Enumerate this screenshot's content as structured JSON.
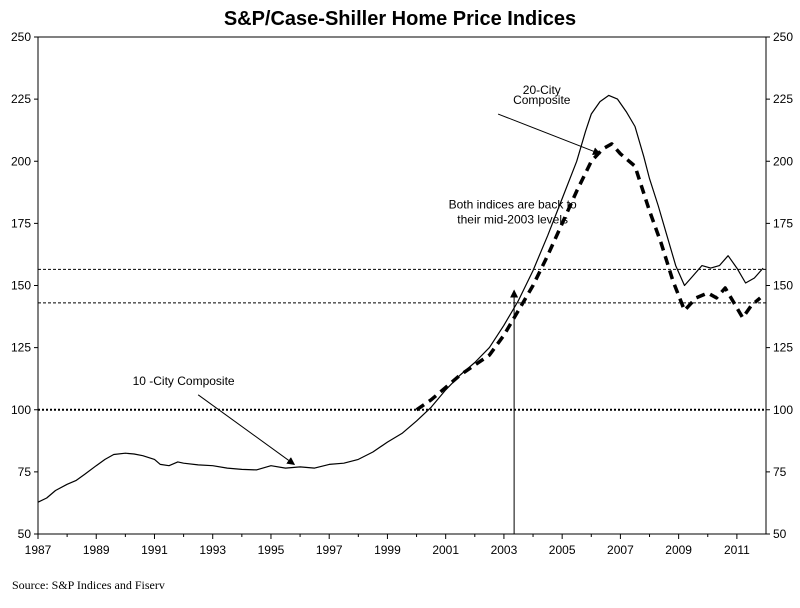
{
  "chart_data": {
    "type": "line",
    "title": "S&P/Case-Shiller Home Price Indices",
    "xlabel": "",
    "ylabel": "",
    "xlim": [
      1987,
      2012
    ],
    "ylim": [
      50,
      250
    ],
    "x_ticks": [
      "1987",
      "1989",
      "1991",
      "1993",
      "1995",
      "1997",
      "1999",
      "2001",
      "2003",
      "2005",
      "2007",
      "2009",
      "2011"
    ],
    "y_ticks": [
      "50",
      "75",
      "100",
      "125",
      "150",
      "175",
      "200",
      "225",
      "250"
    ],
    "grid": false,
    "series": [
      {
        "name": "10 -City Composite",
        "style": "solid",
        "points": [
          [
            1987.0,
            62.8
          ],
          [
            1987.3,
            64.5
          ],
          [
            1987.6,
            67.5
          ],
          [
            1988.0,
            70.0
          ],
          [
            1988.3,
            71.5
          ],
          [
            1988.6,
            74.0
          ],
          [
            1989.0,
            77.5
          ],
          [
            1989.3,
            80.0
          ],
          [
            1989.6,
            82.0
          ],
          [
            1990.0,
            82.5
          ],
          [
            1990.3,
            82.2
          ],
          [
            1990.6,
            81.5
          ],
          [
            1991.0,
            80.0
          ],
          [
            1991.2,
            78.0
          ],
          [
            1991.5,
            77.5
          ],
          [
            1991.8,
            79.0
          ],
          [
            1992.0,
            78.5
          ],
          [
            1992.5,
            77.8
          ],
          [
            1993.0,
            77.5
          ],
          [
            1993.5,
            76.5
          ],
          [
            1994.0,
            76.0
          ],
          [
            1994.5,
            75.8
          ],
          [
            1995.0,
            77.5
          ],
          [
            1995.5,
            76.5
          ],
          [
            1996.0,
            77.0
          ],
          [
            1996.5,
            76.5
          ],
          [
            1997.0,
            78.0
          ],
          [
            1997.5,
            78.5
          ],
          [
            1998.0,
            80.0
          ],
          [
            1998.5,
            83.0
          ],
          [
            1999.0,
            87.0
          ],
          [
            1999.5,
            90.5
          ],
          [
            2000.0,
            95.5
          ],
          [
            2000.5,
            101.0
          ],
          [
            2001.0,
            108.0
          ],
          [
            2001.5,
            114.0
          ],
          [
            2002.0,
            119.0
          ],
          [
            2002.5,
            125.0
          ],
          [
            2003.0,
            134.0
          ],
          [
            2003.5,
            144.0
          ],
          [
            2004.0,
            156.0
          ],
          [
            2004.5,
            170.0
          ],
          [
            2005.0,
            185.0
          ],
          [
            2005.5,
            200.0
          ],
          [
            2005.8,
            212.0
          ],
          [
            2006.0,
            219.0
          ],
          [
            2006.3,
            224.0
          ],
          [
            2006.6,
            226.5
          ],
          [
            2006.9,
            225.0
          ],
          [
            2007.2,
            220.0
          ],
          [
            2007.5,
            214.0
          ],
          [
            2007.8,
            202.0
          ],
          [
            2008.0,
            193.0
          ],
          [
            2008.3,
            182.0
          ],
          [
            2008.6,
            170.0
          ],
          [
            2008.9,
            158.0
          ],
          [
            2009.2,
            150.0
          ],
          [
            2009.5,
            154.0
          ],
          [
            2009.8,
            158.0
          ],
          [
            2010.1,
            157.0
          ],
          [
            2010.4,
            158.0
          ],
          [
            2010.7,
            162.0
          ],
          [
            2011.0,
            157.0
          ],
          [
            2011.3,
            151.0
          ],
          [
            2011.6,
            153.0
          ],
          [
            2011.9,
            157.0
          ]
        ]
      },
      {
        "name": "20-City Composite",
        "style": "dashed",
        "points": [
          [
            2000.0,
            100.0
          ],
          [
            2000.5,
            104.0
          ],
          [
            2001.0,
            109.0
          ],
          [
            2001.5,
            114.0
          ],
          [
            2002.0,
            118.0
          ],
          [
            2002.5,
            122.0
          ],
          [
            2003.0,
            130.0
          ],
          [
            2003.5,
            140.0
          ],
          [
            2004.0,
            150.0
          ],
          [
            2004.5,
            162.0
          ],
          [
            2005.0,
            175.0
          ],
          [
            2005.5,
            188.0
          ],
          [
            2006.0,
            200.0
          ],
          [
            2006.4,
            205.0
          ],
          [
            2006.7,
            207.0
          ],
          [
            2007.0,
            203.0
          ],
          [
            2007.5,
            198.0
          ],
          [
            2008.0,
            180.0
          ],
          [
            2008.4,
            167.0
          ],
          [
            2008.8,
            152.0
          ],
          [
            2009.2,
            140.0
          ],
          [
            2009.6,
            145.0
          ],
          [
            2010.0,
            147.0
          ],
          [
            2010.3,
            145.0
          ],
          [
            2010.6,
            149.0
          ],
          [
            2010.9,
            143.0
          ],
          [
            2011.2,
            137.0
          ],
          [
            2011.5,
            142.0
          ],
          [
            2011.8,
            145.0
          ]
        ]
      }
    ],
    "reference_lines": [
      {
        "y": 100,
        "style": "dotted-heavy"
      },
      {
        "y": 156.5,
        "style": "dotted"
      },
      {
        "y": 143.0,
        "style": "dotted"
      }
    ],
    "annotations": [
      {
        "text": "20-City",
        "x": 2004.3,
        "y": 227
      },
      {
        "text": "Composite",
        "x": 2004.3,
        "y": 223
      },
      {
        "text": "Both indices are back to",
        "x": 2003.3,
        "y": 181
      },
      {
        "text": "their mid-2003 levels",
        "x": 2003.3,
        "y": 175
      },
      {
        "text": "10 -City Composite",
        "x": 1992.0,
        "y": 110
      }
    ],
    "arrows": [
      {
        "from": [
          2002.8,
          219
        ],
        "to": [
          2006.3,
          203
        ]
      },
      {
        "from": [
          1992.5,
          106
        ],
        "to": [
          1995.8,
          78
        ]
      },
      {
        "from": [
          2003.35,
          50
        ],
        "to": [
          2003.35,
          148
        ]
      }
    ]
  },
  "source": "Source: S&P Indices and Fiserv"
}
